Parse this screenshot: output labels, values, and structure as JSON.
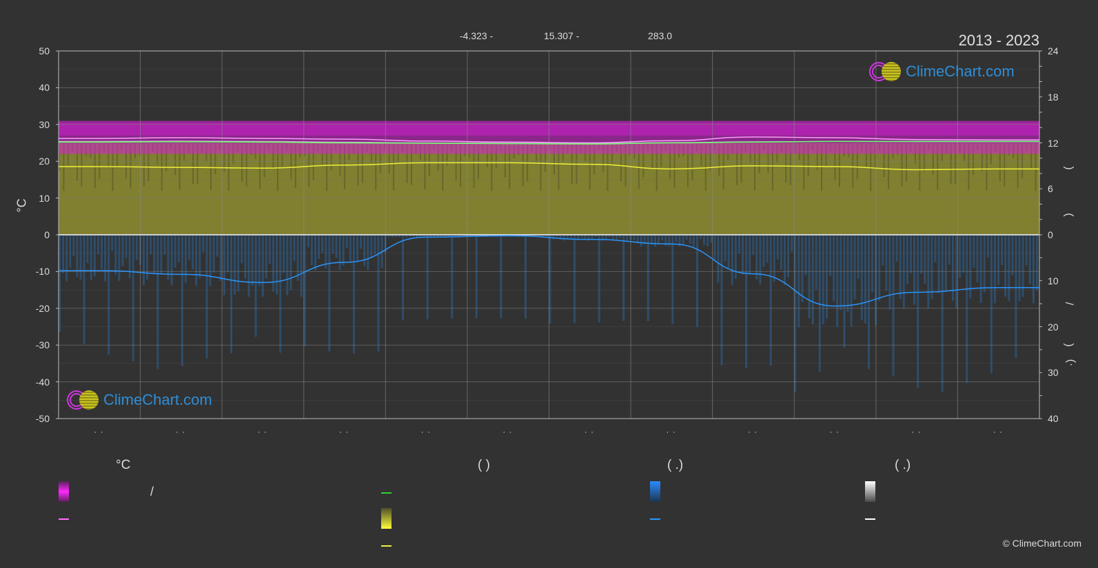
{
  "header": {
    "stat_min": "-4.323 -",
    "stat_mid": "15.307 -",
    "stat_right": "283.0",
    "period": "2013 - 2023"
  },
  "brand": {
    "logo_text": "ClimeChart.com",
    "copyright": "© ClimeChart.com"
  },
  "axes": {
    "left_unit": "°C",
    "left_ticks": [
      "50",
      "40",
      "30",
      "20",
      "10",
      "0",
      "-10",
      "-20",
      "-30",
      "-40",
      "-50"
    ],
    "right_top_ticks": [
      "24",
      "18",
      "12",
      "6",
      "0"
    ],
    "right_bottom_ticks": [
      "10",
      "20",
      "30",
      "40"
    ],
    "right_labels": [
      ")",
      "(",
      "/",
      ")",
      "(·"
    ],
    "month_markers": [
      "· ·",
      "· ·",
      "· ·",
      "· ·",
      "· ·",
      "· ·",
      "· ·",
      "· ·",
      "· ·",
      "· ·",
      "· ·",
      "· ·"
    ]
  },
  "legend": {
    "col1_head": "°C",
    "col2_head": "(            )",
    "col3_head": "(    .)",
    "col4_head": "(    .)",
    "col1_slash": "/"
  },
  "colors": {
    "temp_band": "#d61fd6",
    "sunshine_band": "#c8c840",
    "precip_band": "#2a6fb0",
    "avg_max_line": "#ff9dff",
    "avg_min_line": "#ff9dff",
    "mean_line": "#70ff70",
    "sunshine_line": "#f0f03c",
    "precip_line": "#2a96ff",
    "snow": "#ffffff"
  },
  "chart_data": {
    "type": "area",
    "x_months": [
      1,
      2,
      3,
      4,
      5,
      6,
      7,
      8,
      9,
      10,
      11,
      12
    ],
    "ylim_temp": [
      -50,
      50
    ],
    "ylim_daylight_hours": [
      0,
      24
    ],
    "ylim_precip_mm": [
      0,
      40
    ],
    "series": [
      {
        "key": "avg_max_temp",
        "values": [
          26.2,
          26.4,
          26.2,
          26.0,
          25.5,
          25.2,
          25.0,
          25.6,
          26.6,
          26.4,
          25.9,
          25.8
        ]
      },
      {
        "key": "mean_temp",
        "values": [
          25.2,
          25.3,
          25.2,
          25.0,
          24.9,
          24.8,
          24.7,
          25.0,
          25.2,
          25.4,
          25.4,
          25.4
        ]
      },
      {
        "key": "avg_min_temp",
        "values": [
          25.4,
          25.5,
          25.4,
          25.2,
          25.0,
          24.9,
          24.8,
          25.1,
          25.3,
          25.4,
          25.3,
          25.3
        ]
      },
      {
        "key": "sunshine_hours",
        "values": [
          8.9,
          8.8,
          8.7,
          9.1,
          9.4,
          9.4,
          9.2,
          8.6,
          9.0,
          8.9,
          8.5,
          8.6
        ]
      },
      {
        "key": "precip_mm",
        "values": [
          7.8,
          8.6,
          10.4,
          6.0,
          0.5,
          0.2,
          1.0,
          2.0,
          8.5,
          15.5,
          12.5,
          11.5
        ]
      }
    ],
    "band_temp_range": [
      22,
      31
    ],
    "band_sunshine_max_hours": [
      11,
      12
    ]
  }
}
